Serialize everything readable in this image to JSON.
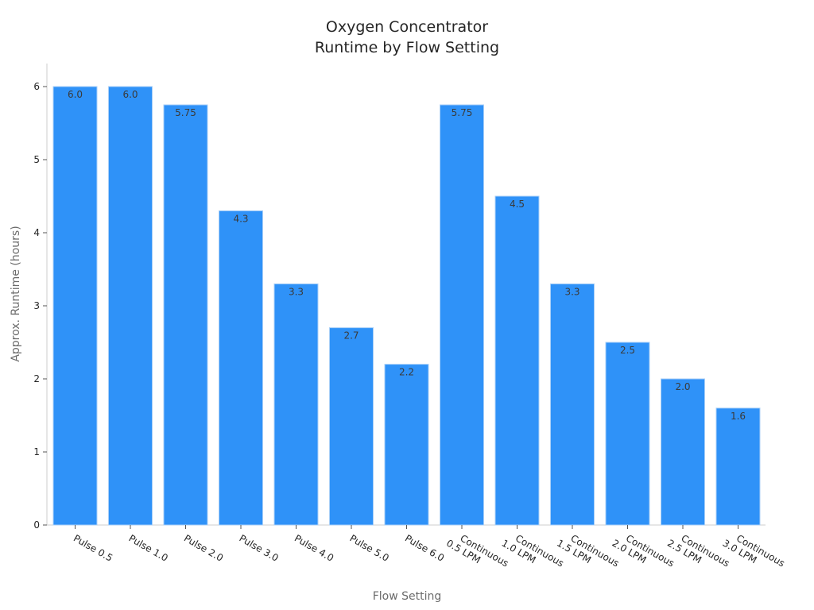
{
  "chart_data": {
    "type": "bar",
    "title_lines": [
      "Oxygen Concentrator",
      "Runtime by Flow Setting"
    ],
    "xlabel": "Flow Setting",
    "ylabel": "Approx. Runtime (hours)",
    "ylim": [
      0,
      6.3
    ],
    "yticks": [
      0,
      1,
      2,
      3,
      4,
      5,
      6
    ],
    "grid": false,
    "categories": [
      [
        "Pulse 0.5"
      ],
      [
        "Pulse 1.0"
      ],
      [
        "Pulse 2.0"
      ],
      [
        "Pulse 3.0"
      ],
      [
        "Pulse 4.0"
      ],
      [
        "Pulse 5.0"
      ],
      [
        "Pulse 6.0"
      ],
      [
        "Continuous",
        "0.5 LPM"
      ],
      [
        "Continuous",
        "1.0 LPM"
      ],
      [
        "Continuous",
        "1.5 LPM"
      ],
      [
        "Continuous",
        "2.0 LPM"
      ],
      [
        "Continuous",
        "2.5 LPM"
      ],
      [
        "Continuous",
        "3.0 LPM"
      ]
    ],
    "values": [
      6.0,
      6.0,
      5.75,
      4.3,
      3.3,
      2.7,
      2.2,
      5.75,
      4.5,
      3.3,
      2.5,
      2.0,
      1.6
    ],
    "value_labels": [
      "6.0",
      "6.0",
      "5.75",
      "4.3",
      "3.3",
      "2.7",
      "2.2",
      "5.75",
      "4.5",
      "3.3",
      "2.5",
      "2.0",
      "1.6"
    ],
    "colors": {
      "bar": "#2f92f8",
      "bar_edge": "#a9cff7"
    }
  }
}
